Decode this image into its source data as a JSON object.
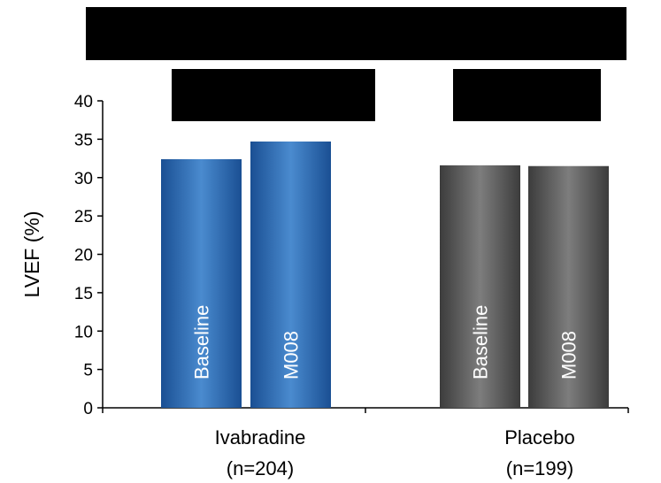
{
  "chart_data": {
    "type": "bar",
    "ylabel": "LVEF (%)",
    "ylim": [
      0,
      40
    ],
    "yticks": [
      0,
      5,
      10,
      15,
      20,
      25,
      30,
      35,
      40
    ],
    "groups": [
      {
        "name": "Ivabradine",
        "n_label": "(n=204)",
        "color": "#1f5fa8",
        "bars": [
          {
            "label": "Baseline",
            "value": 32.4
          },
          {
            "label": "M008",
            "value": 34.7
          }
        ]
      },
      {
        "name": "Placebo",
        "n_label": "(n=199)",
        "color": "#5a5a5a",
        "bars": [
          {
            "label": "Baseline",
            "value": 31.6
          },
          {
            "label": "M008",
            "value": 31.5
          }
        ]
      }
    ],
    "grid": false,
    "legend": "none"
  }
}
